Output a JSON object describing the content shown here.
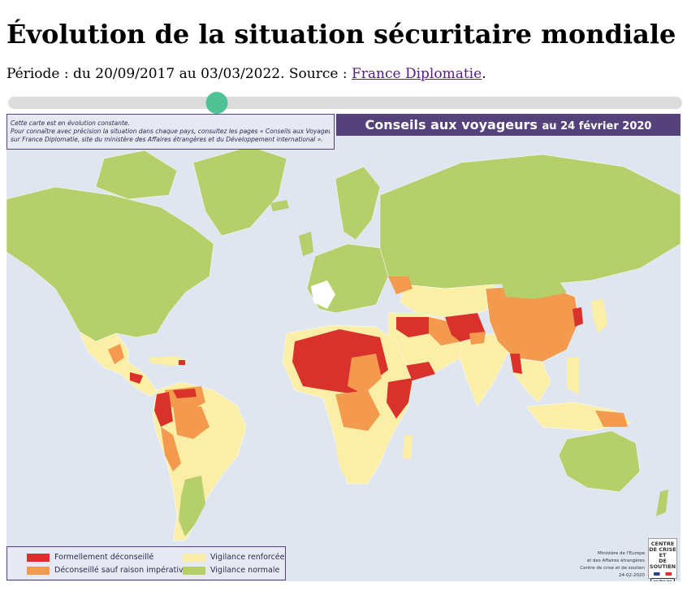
{
  "page": {
    "title": "Évolution de la situation sécuritaire mondiale",
    "period_text": "Période : du 20/09/2017 au 03/03/2022. Source : ",
    "source_link": "France Diplomatie",
    "period_suffix": "."
  },
  "slider": {
    "value_fraction": 0.31
  },
  "map": {
    "banner_title": "Conseils aux voyageurs",
    "banner_date": "au 24 février 2020",
    "note": [
      "Cette carte est en évolution constante.",
      "Pour connaître avec précision la situation dans chaque pays, consultez les pages « Conseils aux Voyageurs »",
      "sur France Diplomatie, site du ministère des Affaires étrangères et du Développement international »."
    ],
    "legend": [
      {
        "label": "Formellement déconseillé",
        "color": "#d9312b"
      },
      {
        "label": "Déconseillé sauf raison impérative",
        "color": "#f39a4f"
      },
      {
        "label": "Vigilance renforcée",
        "color": "#fbeea6"
      },
      {
        "label": "Vigilance normale",
        "color": "#b5cf6b"
      }
    ],
    "credit": [
      "Ministère de l'Europe",
      "et des Affaires étrangères",
      "Centre de crise et de soutien",
      "24-02-2020"
    ],
    "logo": [
      "CENTRE",
      "DE CRISE ET",
      "DE SOUTIEN"
    ],
    "colors": {
      "ocean": "#dfe6f0",
      "normal": "#b5cf6b",
      "enhanced": "#fbeea6",
      "advised_against": "#f39a4f",
      "formally_advised_against": "#d9312b",
      "france": "#ffffff"
    }
  }
}
